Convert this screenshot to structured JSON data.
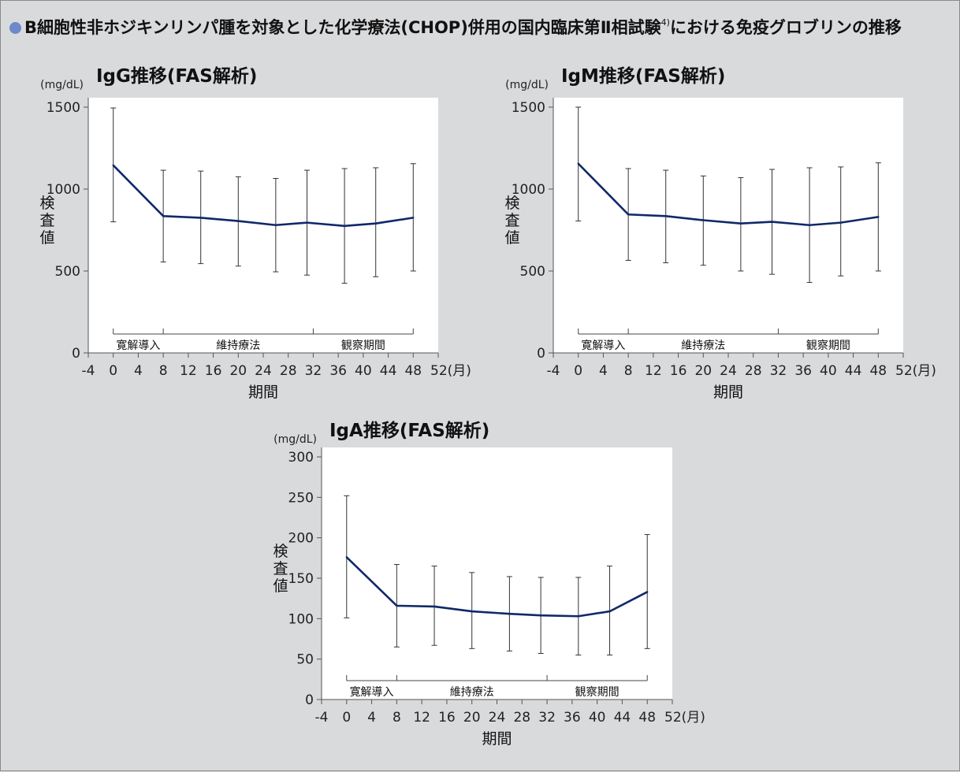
{
  "header": {
    "title": "B細胞性非ホジキンリンパ腫を対象とした化学療法(CHOP)併用の国内臨床第Ⅱ相試験",
    "ref": "4)",
    "title_tail": "における免疫グロブリンの推移"
  },
  "colors": {
    "line": "#10286a",
    "bullet": "#6d89c9",
    "page_bg": "#d9dadc",
    "plot_bg": "#ffffff"
  },
  "chart_data": [
    {
      "type": "line",
      "title": "IgG推移(FAS解析)",
      "unit": "(mg/dL)",
      "ylabel": "検査値",
      "xlabel": "期間",
      "x_unit_label": "52(月)",
      "xlim": [
        -4,
        52
      ],
      "ylim": [
        0,
        1500
      ],
      "x_ticks": [
        -4,
        0,
        4,
        8,
        12,
        16,
        20,
        24,
        28,
        32,
        36,
        40,
        44,
        48,
        52
      ],
      "y_ticks": [
        0,
        500,
        1000,
        1500
      ],
      "phases": [
        {
          "label": "寛解導入",
          "x_start": 0,
          "x_end": 8
        },
        {
          "label": "維持療法",
          "x_start": 8,
          "x_end": 32
        },
        {
          "label": "観察期間",
          "x_start": 32,
          "x_end": 48
        }
      ],
      "x": [
        0,
        8,
        14,
        20,
        26,
        31,
        37,
        42,
        48
      ],
      "values": [
        1145,
        835,
        825,
        805,
        780,
        795,
        775,
        790,
        825
      ],
      "error_upper": [
        1495,
        1115,
        1110,
        1075,
        1065,
        1115,
        1125,
        1130,
        1155
      ],
      "error_lower": [
        800,
        555,
        545,
        530,
        495,
        475,
        425,
        465,
        500
      ]
    },
    {
      "type": "line",
      "title": "IgM推移(FAS解析)",
      "unit": "(mg/dL)",
      "ylabel": "検査値",
      "xlabel": "期間",
      "x_unit_label": "52(月)",
      "xlim": [
        -4,
        52
      ],
      "ylim": [
        0,
        1500
      ],
      "x_ticks": [
        -4,
        0,
        4,
        8,
        12,
        16,
        20,
        24,
        28,
        32,
        36,
        40,
        44,
        48,
        52
      ],
      "y_ticks": [
        0,
        500,
        1000,
        1500
      ],
      "phases": [
        {
          "label": "寛解導入",
          "x_start": 0,
          "x_end": 8
        },
        {
          "label": "維持療法",
          "x_start": 8,
          "x_end": 32
        },
        {
          "label": "観察期間",
          "x_start": 32,
          "x_end": 48
        }
      ],
      "x": [
        0,
        8,
        14,
        20,
        26,
        31,
        37,
        42,
        48
      ],
      "values": [
        1155,
        845,
        835,
        810,
        790,
        800,
        780,
        795,
        830
      ],
      "error_upper": [
        1500,
        1125,
        1115,
        1080,
        1070,
        1120,
        1130,
        1135,
        1160
      ],
      "error_lower": [
        805,
        565,
        550,
        535,
        500,
        480,
        430,
        470,
        500
      ]
    },
    {
      "type": "line",
      "title": "IgA推移(FAS解析)",
      "unit": "(mg/dL)",
      "ylabel": "検査値",
      "xlabel": "期間",
      "x_unit_label": "52(月)",
      "xlim": [
        -4,
        52
      ],
      "ylim": [
        0,
        300
      ],
      "x_ticks": [
        -4,
        0,
        4,
        8,
        12,
        16,
        20,
        24,
        28,
        32,
        36,
        40,
        44,
        48,
        52
      ],
      "y_ticks": [
        0,
        50,
        100,
        150,
        200,
        250,
        300
      ],
      "phases": [
        {
          "label": "寛解導入",
          "x_start": 0,
          "x_end": 8
        },
        {
          "label": "維持療法",
          "x_start": 8,
          "x_end": 32
        },
        {
          "label": "観察期間",
          "x_start": 32,
          "x_end": 48
        }
      ],
      "x": [
        0,
        8,
        14,
        20,
        26,
        31,
        37,
        42,
        48
      ],
      "values": [
        176,
        116,
        115,
        109,
        106,
        104,
        103,
        109,
        133
      ],
      "error_upper": [
        252,
        167,
        165,
        157,
        152,
        151,
        151,
        165,
        204
      ],
      "error_lower": [
        101,
        65,
        67,
        63,
        60,
        57,
        55,
        55,
        63
      ]
    }
  ]
}
